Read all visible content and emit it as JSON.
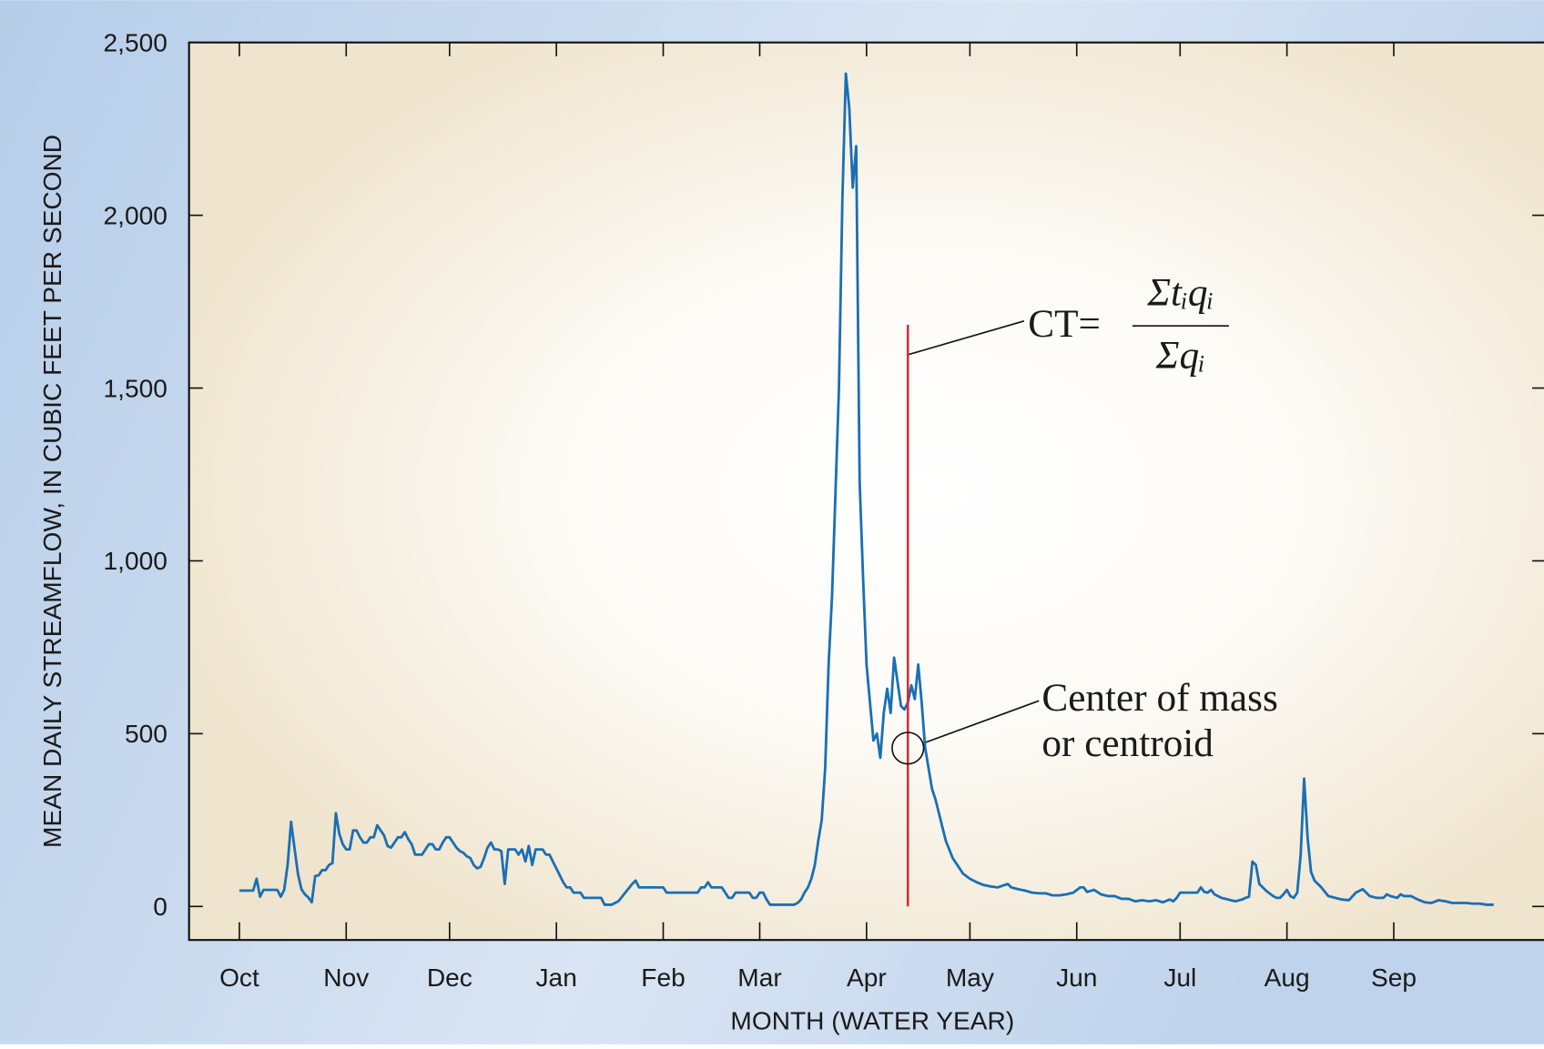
{
  "chart_data": {
    "type": "line",
    "xlabel": "MONTH (WATER YEAR)",
    "ylabel": "MEAN DAILY STREAMFLOW, IN CUBIC FEET PER SECOND",
    "xlim": [
      -14.6,
      378.6
    ],
    "ylim": [
      -97,
      2500
    ],
    "xticks": [
      {
        "value": 0,
        "label": "Oct"
      },
      {
        "value": 31,
        "label": "Nov"
      },
      {
        "value": 61,
        "label": "Dec"
      },
      {
        "value": 92,
        "label": "Jan"
      },
      {
        "value": 123,
        "label": "Feb"
      },
      {
        "value": 151,
        "label": "Mar"
      },
      {
        "value": 182,
        "label": "Apr"
      },
      {
        "value": 212,
        "label": "May"
      },
      {
        "value": 243,
        "label": "Jun"
      },
      {
        "value": 273,
        "label": "Jul"
      },
      {
        "value": 304,
        "label": "Aug"
      },
      {
        "value": 335,
        "label": "Sep"
      }
    ],
    "yticks": [
      0,
      500,
      {
        "value": 1000,
        "label": "1,000"
      },
      {
        "value": 1500,
        "label": "1,500"
      },
      {
        "value": 2000,
        "label": "2,000"
      },
      {
        "value": 2500,
        "label": "2,500"
      }
    ],
    "series": [
      {
        "color": "#1a6fb5",
        "x": [
          0,
          4,
          5,
          6,
          7,
          11,
          12,
          13,
          14,
          15,
          16,
          17,
          18,
          19,
          20,
          21,
          22,
          23,
          24,
          25,
          26,
          27,
          28,
          29,
          30,
          31,
          32,
          33,
          34,
          35,
          36,
          37,
          38,
          39,
          40,
          41,
          42,
          43,
          44,
          45,
          46,
          47,
          48,
          49,
          50,
          51,
          52,
          53,
          54,
          55,
          56,
          57,
          58,
          59,
          60,
          61,
          62,
          63,
          64,
          65,
          66,
          67,
          68,
          69,
          70,
          71,
          72,
          73,
          74,
          75,
          76,
          77,
          78,
          79,
          80,
          81,
          82,
          83,
          84,
          85,
          86,
          87,
          88,
          89,
          90,
          91,
          92,
          93,
          94,
          95,
          96,
          97,
          98,
          99,
          100,
          102,
          104,
          105,
          106,
          108,
          110,
          112,
          114,
          115,
          116,
          118,
          120,
          122,
          123,
          124,
          126,
          128,
          130,
          132,
          133,
          134,
          135,
          136,
          137,
          138,
          140,
          141,
          142,
          143,
          144,
          146,
          148,
          149,
          150,
          151,
          152,
          153,
          154,
          156,
          158,
          160,
          161,
          162,
          163,
          164,
          165,
          166,
          167,
          168,
          169,
          170,
          171,
          172,
          173,
          174,
          175,
          176,
          177,
          178,
          179,
          180,
          181,
          182,
          183,
          184,
          185,
          186,
          187,
          188,
          189,
          190,
          191,
          192,
          193,
          194,
          195,
          196,
          197,
          198,
          199,
          200,
          201,
          202,
          203,
          204,
          205,
          206,
          207,
          208,
          209,
          210,
          212,
          214,
          216,
          218,
          220,
          222,
          223,
          224,
          226,
          228,
          230,
          232,
          234,
          236,
          238,
          240,
          242,
          244,
          245,
          246,
          248,
          250,
          252,
          254,
          256,
          258,
          260,
          262,
          264,
          266,
          268,
          270,
          271,
          272,
          273,
          275,
          277,
          278,
          279,
          280,
          281,
          282,
          283,
          285,
          287,
          289,
          291,
          292,
          293,
          294,
          295,
          296,
          298,
          300,
          301,
          302,
          303,
          304,
          305,
          306,
          307,
          308,
          309,
          310,
          311,
          312,
          314,
          316,
          318,
          320,
          322,
          324,
          326,
          327,
          328,
          330,
          332,
          333,
          334,
          336,
          337,
          338,
          340,
          342,
          344,
          346,
          348,
          350,
          352,
          354,
          356,
          358,
          360,
          362,
          364
        ],
        "values": [
          46,
          46,
          80,
          28,
          48,
          48,
          28,
          48,
          120,
          245,
          168,
          94,
          50,
          35,
          26,
          12,
          88,
          90,
          105,
          105,
          120,
          125,
          270,
          210,
          180,
          165,
          165,
          220,
          220,
          200,
          185,
          185,
          200,
          200,
          235,
          220,
          205,
          175,
          170,
          185,
          200,
          200,
          215,
          195,
          180,
          150,
          150,
          150,
          165,
          180,
          180,
          165,
          165,
          185,
          200,
          200,
          185,
          170,
          160,
          155,
          145,
          140,
          120,
          110,
          115,
          140,
          170,
          185,
          165,
          165,
          160,
          65,
          165,
          165,
          165,
          150,
          165,
          130,
          175,
          120,
          165,
          165,
          165,
          150,
          150,
          130,
          110,
          90,
          70,
          55,
          55,
          40,
          40,
          40,
          25,
          25,
          25,
          25,
          5,
          5,
          15,
          40,
          65,
          75,
          55,
          55,
          55,
          55,
          55,
          40,
          40,
          40,
          40,
          40,
          40,
          55,
          55,
          70,
          55,
          55,
          55,
          40,
          25,
          25,
          40,
          40,
          40,
          25,
          25,
          40,
          40,
          20,
          5,
          5,
          5,
          5,
          5,
          10,
          20,
          40,
          55,
          80,
          120,
          190,
          250,
          400,
          700,
          900,
          1200,
          1500,
          2050,
          2410,
          2310,
          2080,
          2200,
          1230,
          950,
          700,
          590,
          480,
          500,
          430,
          560,
          630,
          560,
          720,
          650,
          580,
          570,
          590,
          640,
          600,
          700,
          590,
          460,
          400,
          340,
          310,
          270,
          230,
          190,
          165,
          140,
          125,
          110,
          95,
          80,
          70,
          62,
          58,
          55,
          62,
          65,
          55,
          50,
          46,
          40,
          38,
          38,
          32,
          32,
          35,
          40,
          55,
          55,
          42,
          48,
          35,
          30,
          30,
          22,
          22,
          15,
          18,
          15,
          18,
          12,
          20,
          15,
          25,
          40,
          40,
          40,
          40,
          55,
          42,
          40,
          48,
          35,
          25,
          20,
          15,
          20,
          25,
          28,
          130,
          120,
          65,
          45,
          30,
          25,
          25,
          35,
          48,
          30,
          25,
          40,
          150,
          370,
          200,
          100,
          75,
          55,
          30,
          25,
          20,
          18,
          40,
          50,
          40,
          30,
          25,
          25,
          35,
          30,
          25,
          35,
          30,
          30,
          20,
          12,
          10,
          18,
          15,
          10,
          10,
          10,
          8,
          8,
          5,
          5
        ]
      }
    ],
    "centroid": {
      "x": 194,
      "y": 458,
      "line_top": 1683,
      "color": "#e0202a"
    },
    "formula": {
      "lhs": "CT=",
      "numerator": "Σtᵢqᵢ",
      "denominator": "Σqᵢ"
    },
    "annotation": [
      "Center of mass",
      "or centroid"
    ]
  }
}
